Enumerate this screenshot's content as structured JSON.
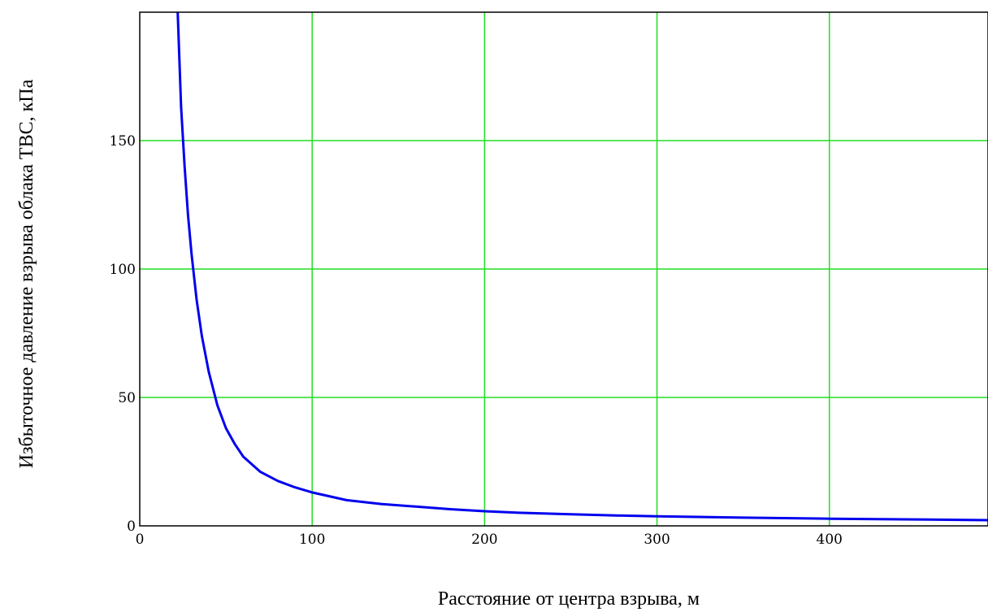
{
  "chart_data": {
    "type": "line",
    "title": "",
    "xlabel": "Расстояние от центра взрыва, м",
    "ylabel": "Избыточное давление взрыва облака ТВС, кПа",
    "xlim": [
      0,
      492
    ],
    "ylim": [
      0,
      200
    ],
    "xticks": [
      0,
      100,
      200,
      300,
      400
    ],
    "yticks": [
      0,
      50,
      100,
      150
    ],
    "xtick_labels": [
      "0",
      "100",
      "200",
      "300",
      "400"
    ],
    "ytick_labels": [
      "0",
      "50",
      "100",
      "150"
    ],
    "grid": true,
    "legend": "none",
    "colors": {
      "grid": "#22dd22",
      "line": "#0000ee",
      "axes": "#000000"
    },
    "series": [
      {
        "x": [
          22,
          24,
          26,
          28,
          30,
          33,
          36,
          40,
          45,
          50,
          55,
          60,
          70,
          80,
          90,
          100,
          120,
          140,
          160,
          180,
          200,
          220,
          250,
          280,
          300,
          350,
          400,
          450,
          492
        ],
        "y": [
          200,
          163,
          140,
          121,
          106,
          88,
          74,
          60,
          47,
          38,
          32,
          27,
          21,
          17.5,
          15,
          13,
          10,
          8.5,
          7.5,
          6.5,
          5.7,
          5.1,
          4.5,
          4,
          3.7,
          3.2,
          2.8,
          2.5,
          2.2
        ]
      }
    ]
  }
}
